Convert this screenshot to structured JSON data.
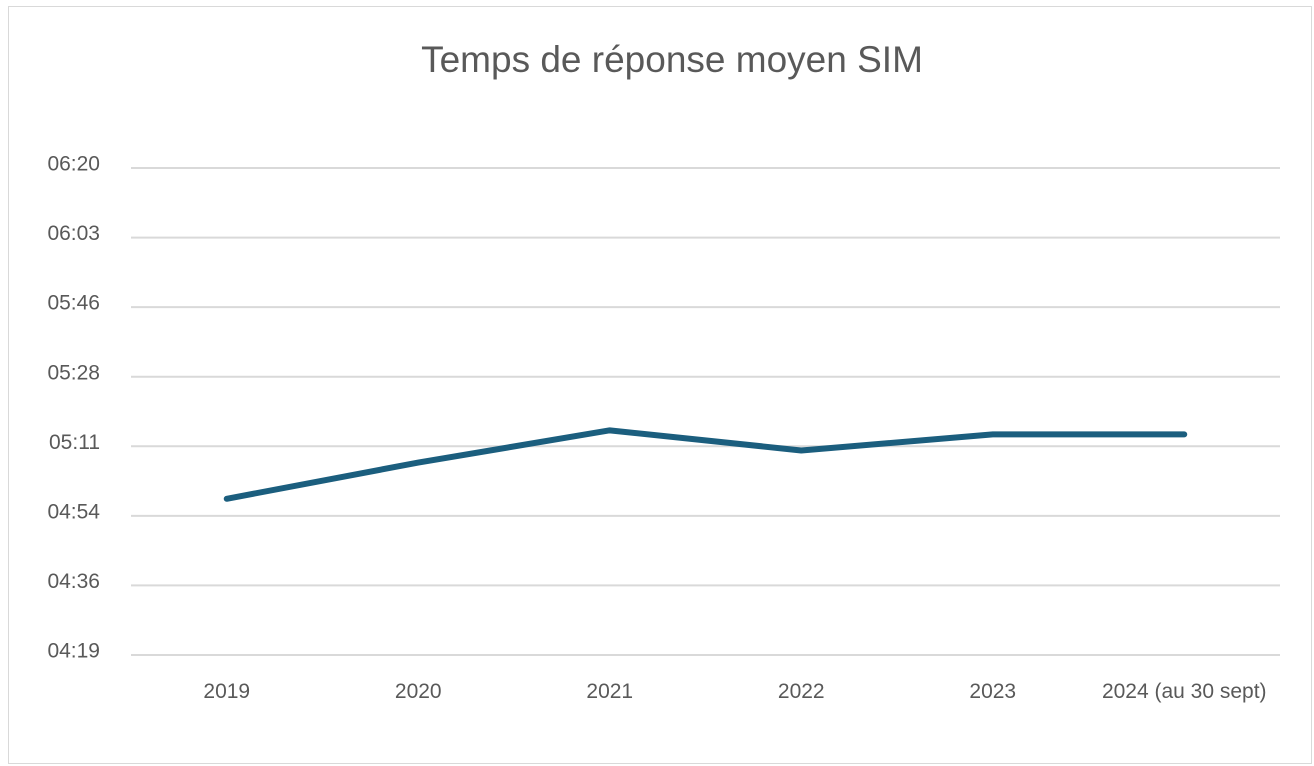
{
  "chart_data": {
    "type": "line",
    "title": "Temps de réponse moyen SIM",
    "categories": [
      "2019",
      "2020",
      "2021",
      "2022",
      "2023",
      "2024 (au 30 sept)"
    ],
    "series": [
      {
        "name": "Temps de réponse moyen",
        "color": "#1b5e7e",
        "values": [
          298,
          307,
          315,
          310,
          314,
          314
        ]
      }
    ],
    "ylim": [
      259.2,
      380.16
    ],
    "yticks": [
      {
        "value": 259.2,
        "label": "04:19"
      },
      {
        "value": 276.48,
        "label": "04:36"
      },
      {
        "value": 293.76,
        "label": "04:54"
      },
      {
        "value": 311.04,
        "label": "05:11"
      },
      {
        "value": 328.32,
        "label": "05:28"
      },
      {
        "value": 345.6,
        "label": "05:46"
      },
      {
        "value": 362.88,
        "label": "06:03"
      },
      {
        "value": 380.16,
        "label": "06:20"
      }
    ],
    "grid": true
  }
}
